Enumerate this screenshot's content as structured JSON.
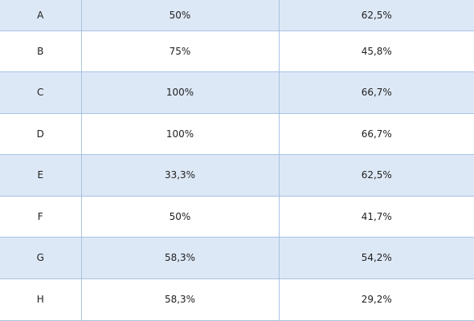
{
  "colors": {
    "row_shaded": "#dde8f6",
    "row_plain": "#ffffff",
    "grid_line": "#a7c3e3",
    "text": "#1f1f1f"
  },
  "table": {
    "rows": [
      {
        "label": "A",
        "value1": "50%",
        "value2": "62,5%"
      },
      {
        "label": "B",
        "value1": "75%",
        "value2": "45,8%"
      },
      {
        "label": "C",
        "value1": "100%",
        "value2": "66,7%"
      },
      {
        "label": "D",
        "value1": "100%",
        "value2": "66,7%"
      },
      {
        "label": "E",
        "value1": "33,3%",
        "value2": "62,5%"
      },
      {
        "label": "F",
        "value1": "50%",
        "value2": "41,7%"
      },
      {
        "label": "G",
        "value1": "58,3%",
        "value2": "54,2%"
      },
      {
        "label": "H",
        "value1": "58,3%",
        "value2": "29,2%"
      }
    ]
  }
}
